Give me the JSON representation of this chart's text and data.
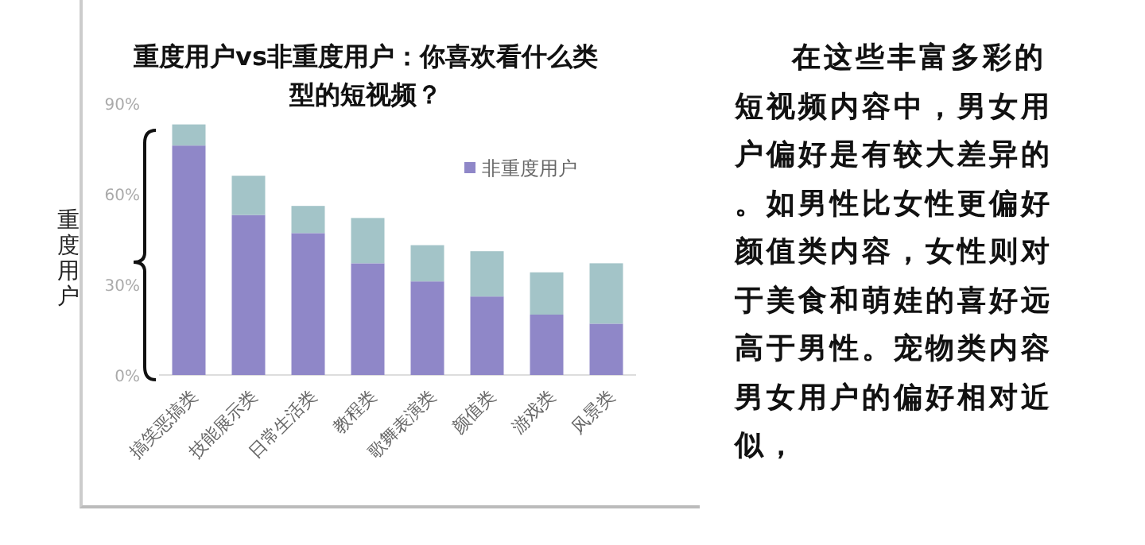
{
  "chart_data": {
    "type": "bar",
    "title": "重度用户vs非重度用户：你喜欢看什么类型的短视频？",
    "ylabel": "重度用户",
    "categories": [
      "搞笑恶搞类",
      "技能展示类",
      "日常生活类",
      "教程类",
      "歌舞表演类",
      "颜值类",
      "游戏类",
      "风景类"
    ],
    "series": [
      {
        "name": "非重度用户",
        "color": "#8f87c8",
        "values": [
          76,
          53,
          47,
          37,
          31,
          26,
          20,
          17
        ]
      },
      {
        "color": "#a3c4c8",
        "values": [
          7,
          13,
          9,
          15,
          12,
          15,
          14,
          20
        ]
      }
    ],
    "stacked": true,
    "ylim": [
      0,
      90
    ],
    "yticks": [
      {
        "value": 0,
        "label": "0%"
      },
      {
        "value": 30,
        "label": "30%"
      },
      {
        "value": 60,
        "label": "60%"
      },
      {
        "value": 90,
        "label": "90%"
      }
    ],
    "grid": false,
    "legend": "top right",
    "annotations": [
      "在这些丰富多彩的短视频内容中，男女用户偏好是有较大差异的。如男性比女性更偏好颜值类内容，女性则对于美食和萌娃的喜好远高于男性。宠物类内容男女用户的偏好相对近似，"
    ]
  }
}
